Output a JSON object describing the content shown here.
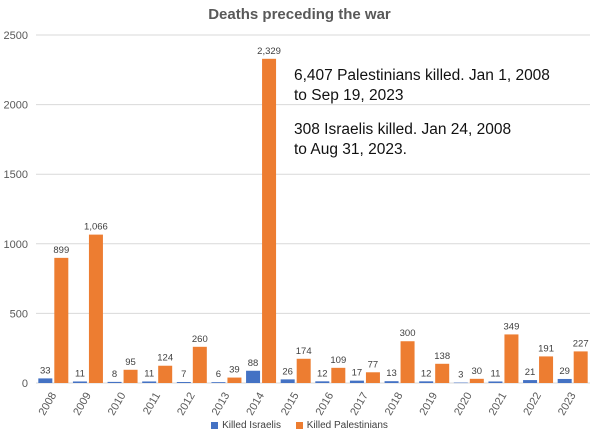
{
  "colors": {
    "israelis": "#4472C4",
    "palestinians": "#ED7D31",
    "grid": "#D9D9D9",
    "axis_text": "#595959"
  },
  "annotations": {
    "palestinians": "6,407 Palestinians killed. Jan 1, 2008\nto Sep 19, 2023",
    "israelis": "308 Israelis killed. Jan 24, 2008\nto Aug 31, 2023."
  },
  "chart_data": {
    "type": "bar",
    "title": "Deaths preceding the war",
    "xlabel": "",
    "ylabel": "",
    "ylim": [
      0,
      2500
    ],
    "yticks": [
      0,
      500,
      1000,
      1500,
      2000,
      2500
    ],
    "grid": true,
    "legend_position": "bottom",
    "categories": [
      "2008",
      "2009",
      "2010",
      "2011",
      "2012",
      "2013",
      "2014",
      "2015",
      "2016",
      "2017",
      "2018",
      "2019",
      "2020",
      "2021",
      "2022",
      "2023"
    ],
    "series": [
      {
        "name": "Killed Israelis",
        "values": [
          33,
          11,
          8,
          11,
          7,
          6,
          88,
          26,
          12,
          17,
          13,
          12,
          3,
          11,
          21,
          29
        ]
      },
      {
        "name": "Killed Palestinians",
        "values": [
          899,
          1066,
          95,
          124,
          260,
          39,
          2329,
          174,
          109,
          77,
          300,
          138,
          30,
          349,
          191,
          227
        ]
      }
    ],
    "data_labels": true
  }
}
